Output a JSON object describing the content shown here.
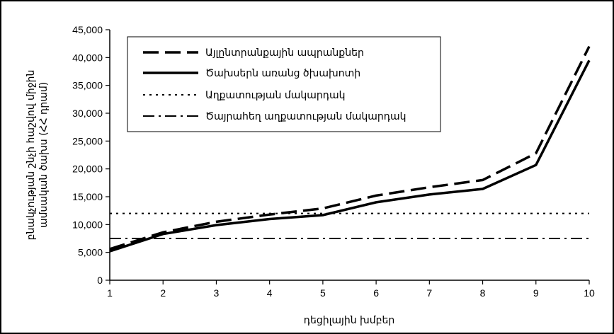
{
  "chart_data": {
    "type": "line",
    "title": "",
    "xlabel": "դեցիլային խմբեր",
    "ylabel_lines": [
      "բնակչության շնչի հաշվով միջին",
      "ամսական ծախս (ՀՀ դրամ)"
    ],
    "x": [
      1,
      2,
      3,
      4,
      5,
      6,
      7,
      8,
      9,
      10
    ],
    "xlim": [
      1,
      10
    ],
    "ylim": [
      0,
      45000
    ],
    "yticks": [
      0,
      5000,
      10000,
      15000,
      20000,
      25000,
      30000,
      35000,
      40000,
      45000
    ],
    "ytick_labels": [
      "0",
      "5,000",
      "10,000",
      "15,000",
      "20,000",
      "25,000",
      "30,000",
      "35,000",
      "40,000",
      "45,000"
    ],
    "xtick_labels": [
      "1",
      "2",
      "3",
      "4",
      "5",
      "6",
      "7",
      "8",
      "9",
      "10"
    ],
    "grid": false,
    "legend_position": "top-left",
    "series": [
      {
        "name": "Այլընտրանքային ապրանքներ",
        "style": "long-dash",
        "values": [
          5600,
          8600,
          10500,
          11800,
          12900,
          15200,
          16700,
          18000,
          22800,
          42000
        ]
      },
      {
        "name": "Ծախսերն առանց ծխախոտի",
        "style": "solid",
        "values": [
          5200,
          8300,
          9900,
          11000,
          11700,
          14000,
          15400,
          16400,
          20700,
          39500
        ]
      },
      {
        "name": "Աղքատության մակարդակ",
        "style": "dotted",
        "values": [
          12000,
          12000,
          12000,
          12000,
          12000,
          12000,
          12000,
          12000,
          12000,
          12000
        ]
      },
      {
        "name": "Ծայրահեղ աղքատության մակարդակ",
        "style": "dash-dot",
        "values": [
          7500,
          7500,
          7500,
          7500,
          7500,
          7500,
          7500,
          7500,
          7500,
          7500
        ]
      }
    ]
  }
}
